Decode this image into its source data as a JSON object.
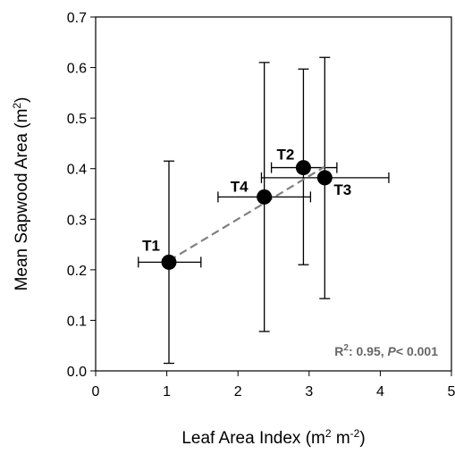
{
  "chart_data": {
    "type": "scatter",
    "xlabel": "Leaf Area Index (m",
    "xlabel_sup1": "2",
    "xlabel_mid": " m",
    "xlabel_sup2": "-2",
    "xlabel_end": ")",
    "ylabel": "Mean Sapwood Area (m",
    "ylabel_sup": "2",
    "ylabel_end": ")",
    "xlim": [
      0,
      5
    ],
    "ylim": [
      0,
      0.7
    ],
    "xticks": [
      0,
      1,
      2,
      3,
      4,
      5
    ],
    "yticks": [
      0.0,
      0.1,
      0.2,
      0.3,
      0.4,
      0.5,
      0.6,
      0.7
    ],
    "ytick_labels": [
      "0.0",
      "0.1",
      "0.2",
      "0.3",
      "0.4",
      "0.5",
      "0.6",
      "0.7"
    ],
    "grid": false,
    "points": [
      {
        "label": "T1",
        "x": 1.03,
        "y": 0.215,
        "xerr": [
          0.6,
          1.48
        ],
        "yerr": [
          0.015,
          0.415
        ]
      },
      {
        "label": "T2",
        "x": 2.92,
        "y": 0.402,
        "xerr": [
          2.47,
          3.39
        ],
        "yerr": [
          0.21,
          0.597
        ]
      },
      {
        "label": "T3",
        "x": 3.22,
        "y": 0.382,
        "xerr": [
          2.33,
          4.12
        ],
        "yerr": [
          0.143,
          0.62
        ]
      },
      {
        "label": "T4",
        "x": 2.37,
        "y": 0.344,
        "xerr": [
          1.72,
          3.02
        ],
        "yerr": [
          0.078,
          0.61
        ]
      }
    ],
    "fit_line": {
      "x": [
        1.03,
        3.22
      ],
      "y": [
        0.218,
        0.404
      ],
      "color": "#808080",
      "style": "dashed"
    },
    "annotation": {
      "r2_prefix": "R",
      "r2_sup": "2",
      "r2_value": ": 0.95, ",
      "p_label": "P",
      "p_value": "< 0.001"
    },
    "colors": {
      "points": "#000000",
      "fit": "#808080",
      "annotation": "#666666"
    }
  }
}
